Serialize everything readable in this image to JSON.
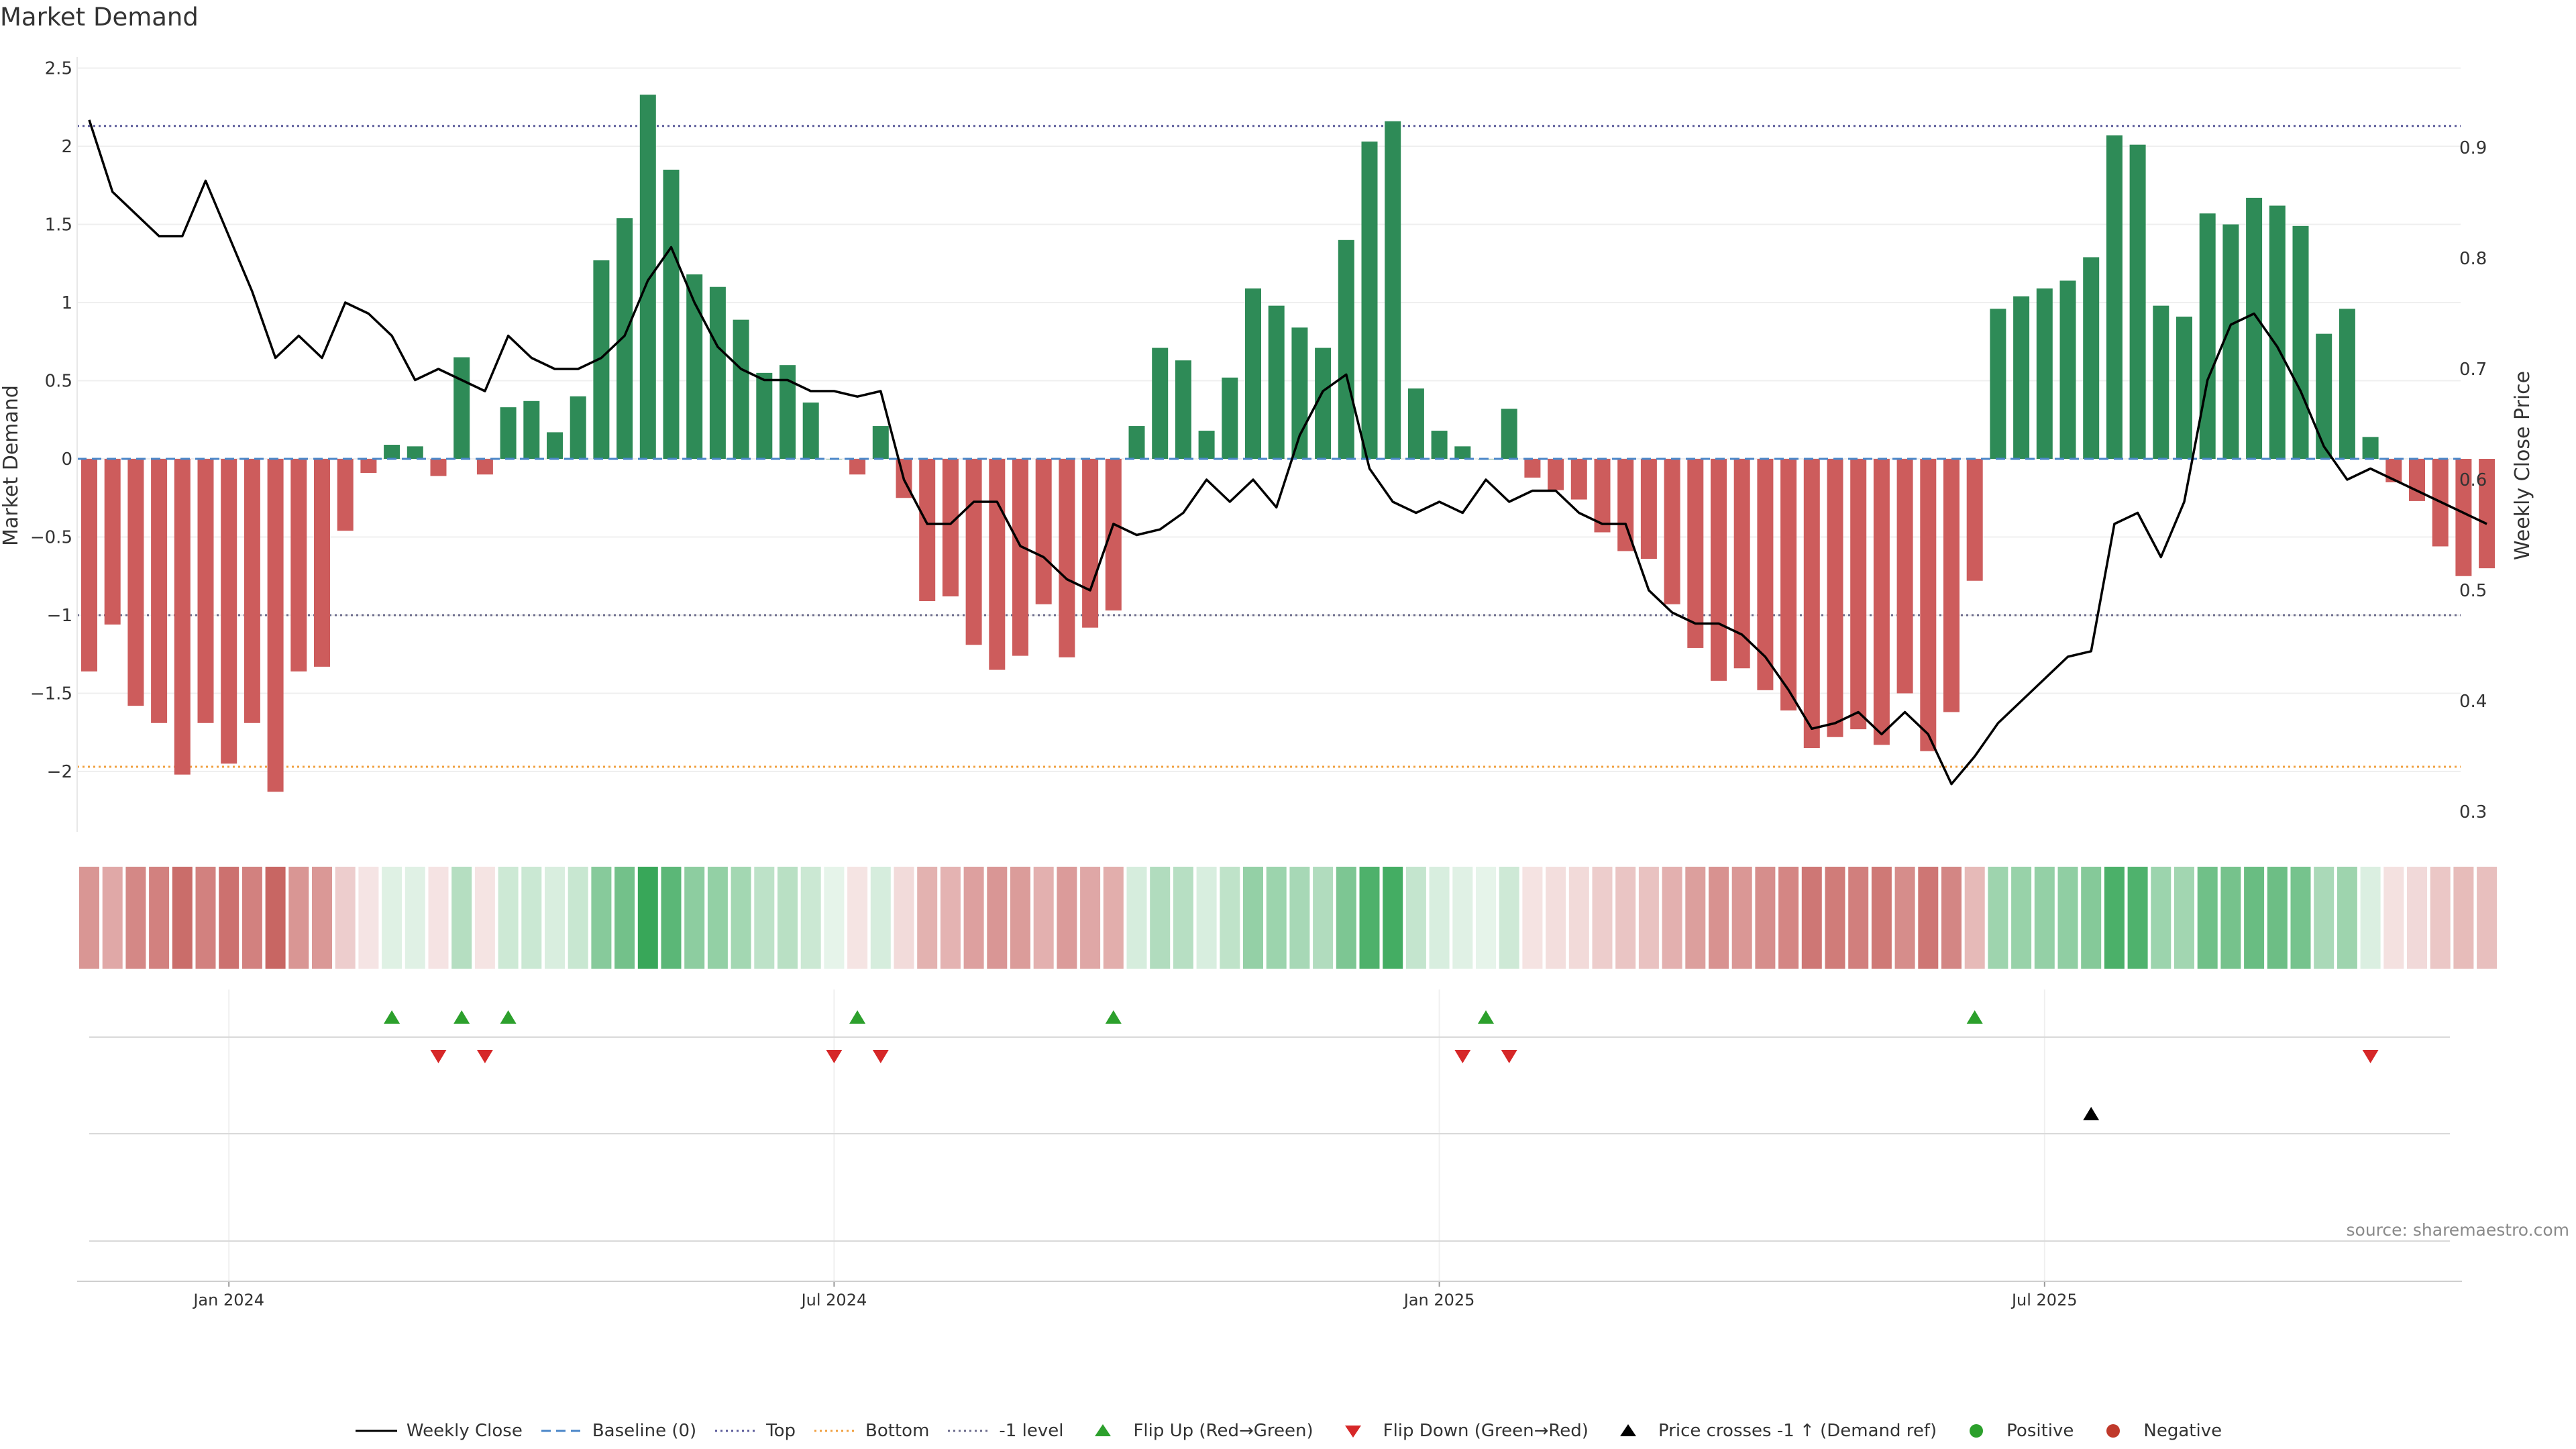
{
  "title": "Market Demand",
  "source": "source: sharemaestro.com",
  "colors": {
    "positive": "#2e8b57",
    "negative": "#cd5c5c",
    "price": "#000000",
    "top_line": "#5b5b9a",
    "bottom_line": "#f0a040",
    "minus1_line": "#6b6b8b",
    "baseline": "#4a86c8",
    "flip_up": "#2ca02c",
    "flip_down": "#d62728",
    "cross_marker": "#000000",
    "dot_positive": "#2ca02c",
    "dot_negative": "#c0392b"
  },
  "legend": [
    {
      "label": "Weekly Close",
      "icon": "solid-line"
    },
    {
      "label": "Baseline (0)",
      "icon": "dashed-line"
    },
    {
      "label": "Top",
      "icon": "dotted-line"
    },
    {
      "label": "Bottom",
      "icon": "dotted-line"
    },
    {
      "label": "-1 level",
      "icon": "dotted-line"
    },
    {
      "label": "Flip Up (Red→Green)",
      "icon": "triangle-up"
    },
    {
      "label": "Flip Down (Green→Red)",
      "icon": "triangle-down"
    },
    {
      "label": "Price crosses -1 ↑ (Demand ref)",
      "icon": "triangle-up"
    },
    {
      "label": "Positive",
      "icon": "dot"
    },
    {
      "label": "Negative",
      "icon": "dot"
    }
  ],
  "chart_data": {
    "type": "bar",
    "title": "Market Demand",
    "ylabel": "Market Demand",
    "y2label": "Weekly Close Price",
    "ylim": [
      -2.4,
      2.5
    ],
    "y2lim": [
      0.28,
      0.98
    ],
    "yticks": [
      "2.5",
      "2",
      "1.5",
      "1",
      "0.5",
      "0",
      "−0.5",
      "−1",
      "−1.5",
      "−2"
    ],
    "y2ticks": [
      "0.9",
      "0.8",
      "0.7",
      "0.6",
      "0.5",
      "0.4",
      "0.3"
    ],
    "x_tick_labels": [
      "Jan 2024",
      "Jul 2024",
      "Jan 2025",
      "Jul 2025"
    ],
    "x_ticks_week_index": [
      6,
      32,
      58,
      84
    ],
    "start_week": "2023-11-19",
    "reference_lines": {
      "top": 2.13,
      "bottom": -1.97,
      "minus1": -1.0,
      "baseline": 0
    },
    "demand": [
      -1.36,
      -1.06,
      -1.58,
      -1.69,
      -2.02,
      -1.69,
      -1.95,
      -1.69,
      -2.13,
      -1.36,
      -1.33,
      -0.46,
      -0.09,
      0.09,
      0.08,
      -0.11,
      0.65,
      -0.1,
      0.33,
      0.37,
      0.17,
      0.4,
      1.27,
      1.54,
      2.33,
      1.85,
      1.18,
      1.1,
      0.89,
      0.55,
      0.6,
      0.36,
      0.0,
      -0.1,
      0.21,
      -0.25,
      -0.91,
      -0.88,
      -1.19,
      -1.35,
      -1.26,
      -0.93,
      -1.27,
      -1.08,
      -0.97,
      0.21,
      0.71,
      0.63,
      0.18,
      0.52,
      1.09,
      0.98,
      0.84,
      0.71,
      1.4,
      2.03,
      2.16,
      0.45,
      0.18,
      0.08,
      0.0,
      0.32,
      -0.12,
      -0.2,
      -0.26,
      -0.47,
      -0.59,
      -0.64,
      -0.93,
      -1.21,
      -1.42,
      -1.34,
      -1.48,
      -1.61,
      -1.85,
      -1.78,
      -1.73,
      -1.83,
      -1.5,
      -1.87,
      -1.62,
      -0.78,
      0.96,
      1.04,
      1.09,
      1.14,
      1.29,
      2.07,
      2.01,
      0.98,
      0.91,
      1.57,
      1.5,
      1.67,
      1.62,
      1.49,
      0.8,
      0.96,
      0.14,
      -0.15,
      -0.27,
      -0.56,
      -0.75,
      -0.7
    ],
    "weekly_close": [
      0.925,
      0.86,
      0.84,
      0.82,
      0.82,
      0.87,
      0.82,
      0.77,
      0.71,
      0.73,
      0.71,
      0.76,
      0.75,
      0.73,
      0.69,
      0.7,
      0.69,
      0.68,
      0.73,
      0.71,
      0.7,
      0.7,
      0.71,
      0.73,
      0.78,
      0.81,
      0.76,
      0.72,
      0.7,
      0.69,
      0.69,
      0.68,
      0.68,
      0.675,
      0.68,
      0.6,
      0.56,
      0.56,
      0.58,
      0.58,
      0.54,
      0.53,
      0.51,
      0.5,
      0.56,
      0.55,
      0.555,
      0.57,
      0.6,
      0.58,
      0.6,
      0.575,
      0.64,
      0.68,
      0.695,
      0.61,
      0.58,
      0.57,
      0.58,
      0.57,
      0.6,
      0.58,
      0.59,
      0.59,
      0.57,
      0.56,
      0.56,
      0.5,
      0.48,
      0.47,
      0.47,
      0.46,
      0.44,
      0.41,
      0.375,
      0.38,
      0.39,
      0.37,
      0.39,
      0.37,
      0.325,
      0.35,
      0.38,
      0.4,
      0.42,
      0.44,
      0.445,
      0.56,
      0.57,
      0.53,
      0.58,
      0.69,
      0.74,
      0.75,
      0.72,
      0.68,
      0.63,
      0.6,
      0.61,
      0.6,
      0.59,
      0.58,
      0.57,
      0.56
    ],
    "flip_up_week_index": [
      13,
      16,
      18,
      33,
      44,
      60,
      81
    ],
    "flip_down_week_index": [
      15,
      17,
      32,
      34,
      59,
      61,
      98
    ],
    "price_cross_week_index": [
      86
    ]
  }
}
